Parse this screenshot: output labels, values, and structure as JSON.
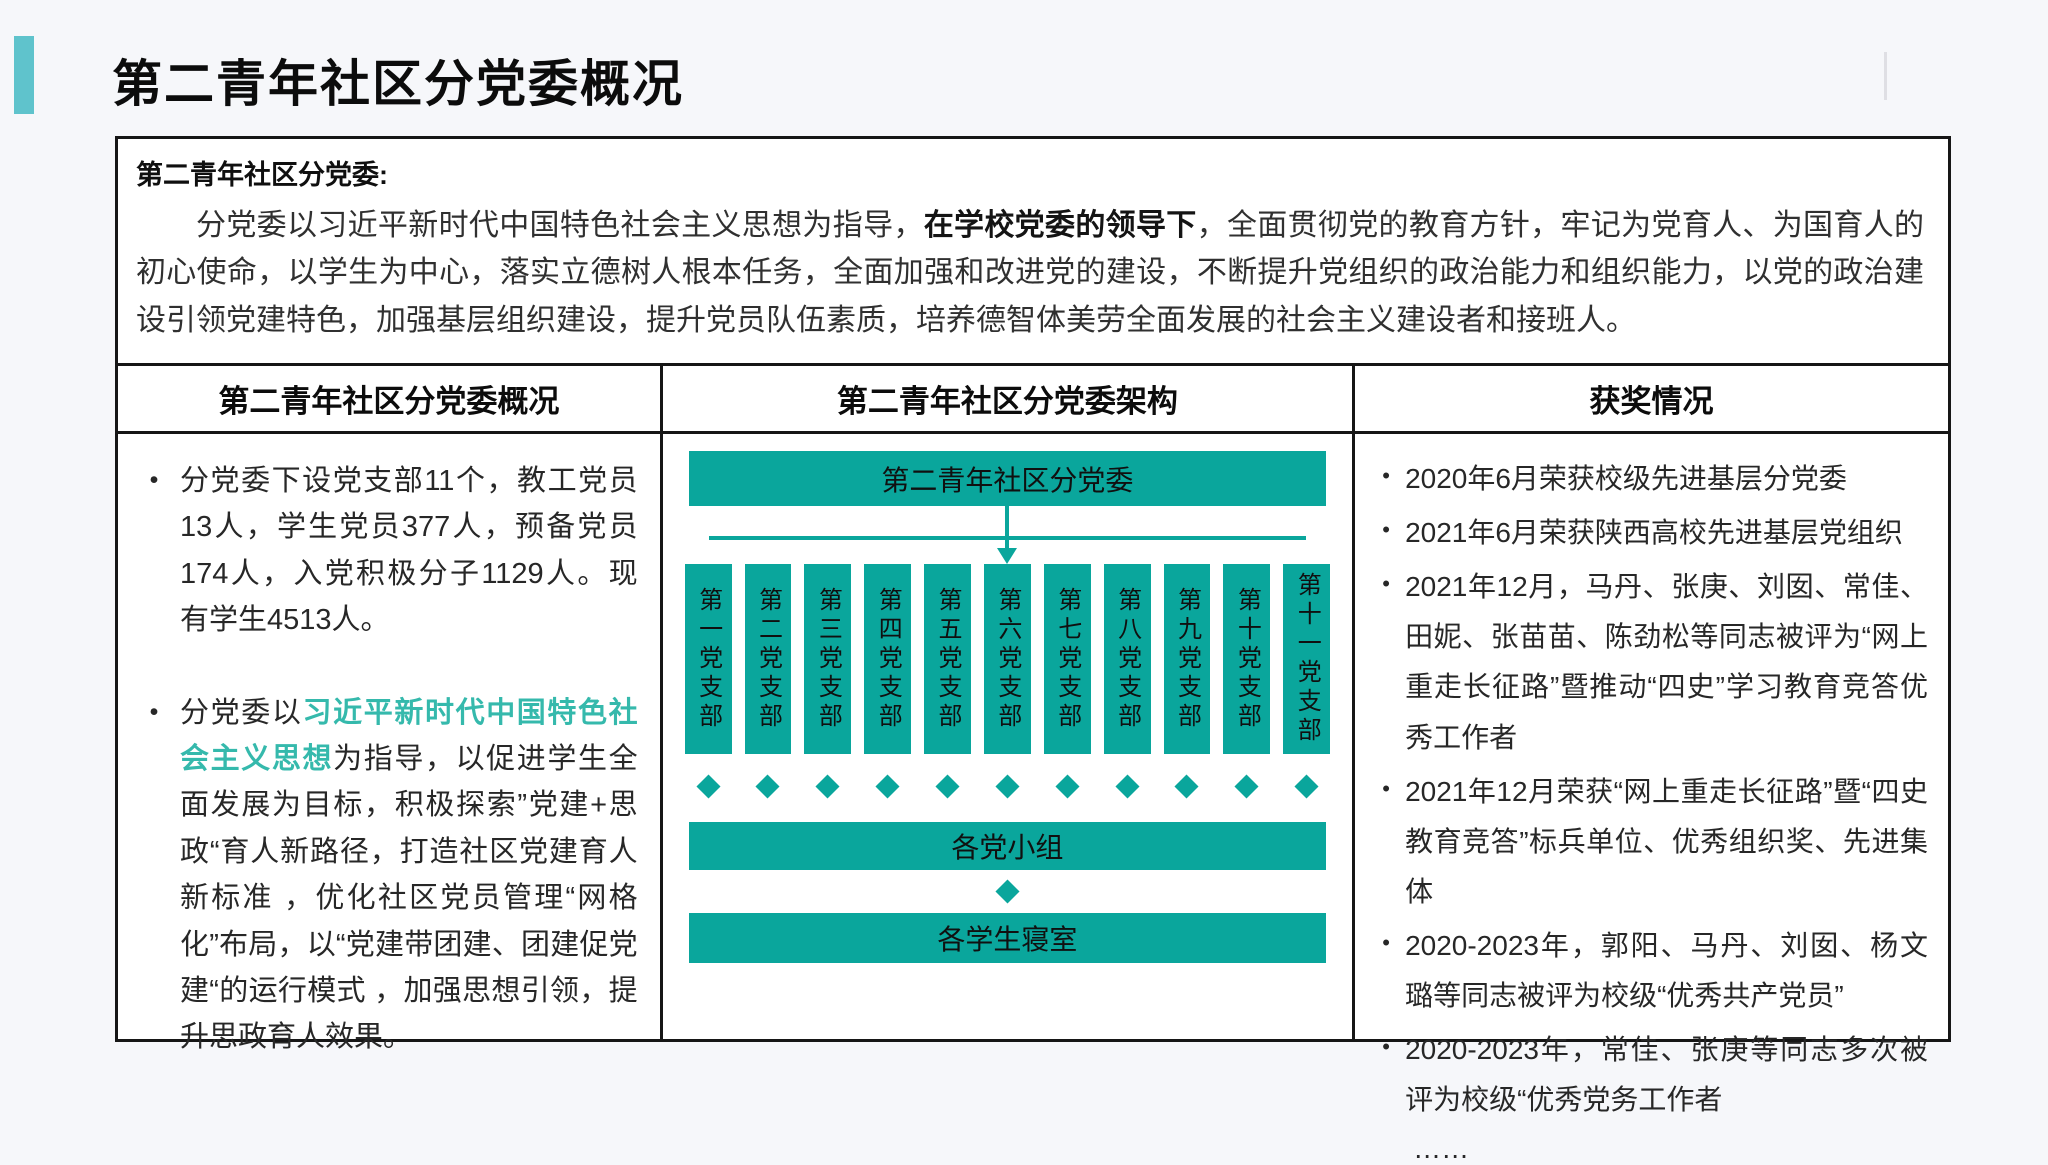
{
  "page": {
    "title": "第二青年社区分党委概况"
  },
  "colors": {
    "teal": "#0aa69c",
    "accent_bar": "#5fc3cc",
    "highlight_text": "#35b9ac",
    "border": "#161616"
  },
  "intro": {
    "label": "第二青年社区分党委:",
    "para_before": "分党委以习近平新时代中国特色社会主义思想为指导，",
    "para_bold": "在学校党委的领导下",
    "para_after": "，全面贯彻党的教育方针，牢记为党育人、为国育人的初心使命，以学生为中心，落实立德树人根本任务，全面加强和改进党的建设，不断提升党组织的政治能力和组织能力，以党的政治建设引领党建特色，加强基层组织建设，提升党员队伍素质，培养德智体美劳全面发展的社会主义建设者和接班人。"
  },
  "overview": {
    "header": "第二青年社区分党委概况",
    "bullet_marker": "•",
    "bullet1": "分党委下设党支部11个，教工党员13人，学生党员377人，预备党员174人，入党积极分子1129人。现有学生4513人。",
    "bullet2_before": "分党委以",
    "bullet2_highlight": "习近平新时代中国特色社会主义思想",
    "bullet2_after": "为指导，以促进学生全面发展为目标，积极探索”党建+思政“育人新路径，打造社区党建育人新标准 ，优化社区党员管理“网格化”布局，以“党建带团建、团建促党建“的运行模式 ，加强思想引领，提升思政育人效果。"
  },
  "structure": {
    "header": "第二青年社区分党委架构",
    "root": "第二青年社区分党委",
    "branches": [
      "第一党支部",
      "第二党支部",
      "第三党支部",
      "第四党支部",
      "第五党支部",
      "第六党支部",
      "第七党支部",
      "第八党支部",
      "第九党支部",
      "第十党支部",
      "第十一党支部"
    ],
    "group": "各党小组",
    "dorm": "各学生寝室"
  },
  "awards": {
    "header": "获奖情况",
    "bullet_marker": "•",
    "items": [
      "2020年6月荣获校级先进基层分党委",
      "2021年6月荣获陕西高校先进基层党组织",
      "2021年12月，马丹、张庚、刘囡、常佳、田妮、张苗苗、陈劲松等同志被评为“网上重走长征路”暨推动“四史”学习教育竞答优秀工作者",
      "2021年12月荣获“网上重走长征路”暨“四史教育竞答”标兵单位、优秀组织奖、先进集体",
      "2020-2023年，郭阳、马丹、刘囡、杨文璐等同志被评为校级“优秀共产党员”",
      "2020-2023年，常佳、张庚等同志多次被评为校级“优秀党务工作者"
    ],
    "ellipsis": "……"
  }
}
